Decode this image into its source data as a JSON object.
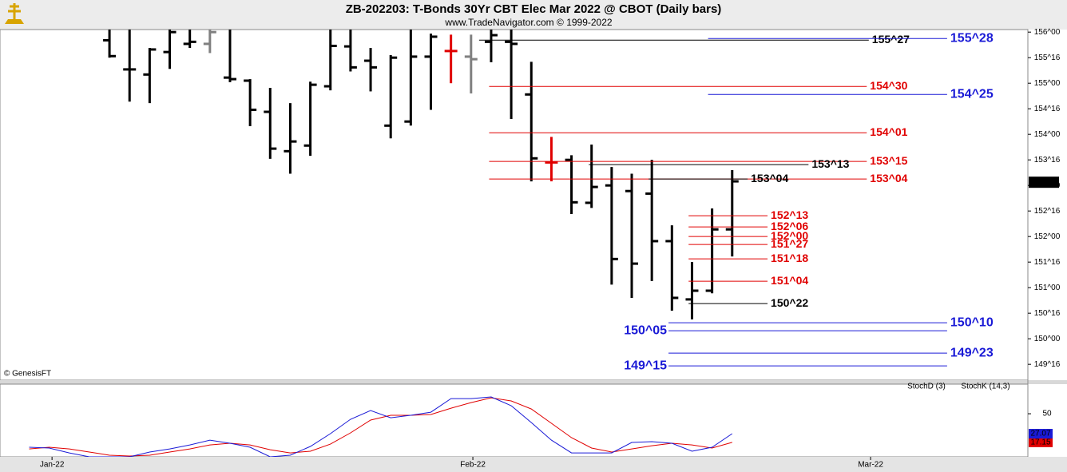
{
  "chart_data": [
    {
      "type": "ohlc",
      "title": "ZB-202203:  T-Bonds 30Yr CBT Elec Mar 2022 @ CBOT  (Daily bars)",
      "subtitle": "www.TradeNavigator.com © 1999-2022",
      "credit": "© GenesisFT",
      "x": [
        0,
        1,
        2,
        3,
        4,
        5,
        6,
        7,
        8,
        9,
        10,
        11,
        12,
        13,
        14,
        15,
        16,
        17,
        18,
        19,
        20,
        21,
        22,
        23,
        24,
        25,
        26,
        27,
        28,
        29,
        30,
        31
      ],
      "open": [
        155.84,
        155.27,
        155.17,
        155.61,
        155.77,
        155.77,
        155.11,
        155.05,
        154.44,
        153.67,
        153.78,
        154.94,
        155.72,
        155.44,
        154.17,
        154.25,
        155.52,
        155.63,
        155.52,
        155.81,
        155.81,
        154.78,
        153.45,
        153.5,
        152.66,
        153.0,
        152.89,
        152.84,
        151.91,
        150.77,
        150.94,
        152.14
      ],
      "high": [
        156.05,
        156.05,
        155.69,
        156.05,
        156.05,
        156.05,
        156.05,
        155.08,
        154.91,
        154.61,
        155.03,
        156.05,
        156.05,
        155.69,
        155.55,
        156.05,
        155.97,
        155.95,
        155.95,
        156.05,
        156.05,
        155.42,
        153.95,
        153.59,
        153.8,
        153.36,
        153.23,
        153.5,
        152.22,
        151.5,
        152.55,
        153.3
      ],
      "low": [
        155.5,
        154.64,
        154.61,
        155.28,
        155.69,
        155.59,
        155.02,
        154.16,
        153.52,
        153.23,
        153.58,
        154.86,
        155.23,
        154.84,
        153.92,
        154.17,
        154.48,
        155.0,
        154.8,
        155.41,
        154.3,
        153.08,
        153.08,
        152.44,
        152.56,
        151.06,
        150.8,
        151.13,
        150.55,
        150.38,
        150.89,
        151.61
      ],
      "close": [
        155.53,
        155.27,
        155.66,
        156.0,
        155.81,
        156.0,
        155.08,
        154.48,
        153.72,
        153.86,
        154.97,
        155.73,
        155.31,
        155.31,
        155.5,
        155.52,
        155.91,
        155.63,
        155.47,
        155.94,
        155.77,
        153.53,
        153.45,
        152.67,
        152.97,
        151.56,
        151.47,
        151.91,
        150.8,
        150.94,
        152.14,
        153.08
      ],
      "bar_colors": [
        "#000000",
        "#000000",
        "#000000",
        "#000000",
        "#000000",
        "#808080",
        "#000000",
        "#000000",
        "#000000",
        "#000000",
        "#000000",
        "#000000",
        "#000000",
        "#000000",
        "#000000",
        "#000000",
        "#000000",
        "#e00000",
        "#808080",
        "#000000",
        "#000000",
        "#000000",
        "#e00000",
        "#000000",
        "#000000",
        "#000000",
        "#000000",
        "#000000",
        "#000000",
        "#000000",
        "#000000",
        "#000000"
      ],
      "xlim": [
        -5.45,
        45.72
      ],
      "ylim": [
        149.19,
        156.05
      ],
      "yticks": [
        {
          "value": 156,
          "label": "156^00"
        },
        {
          "value": 155.5,
          "label": "155^16"
        },
        {
          "value": 155,
          "label": "155^00"
        },
        {
          "value": 154.5,
          "label": "154^16"
        },
        {
          "value": 154,
          "label": "154^00"
        },
        {
          "value": 153.5,
          "label": "153^16"
        },
        {
          "value": 153,
          "label": "153^00"
        },
        {
          "value": 152.5,
          "label": "152^16"
        },
        {
          "value": 152,
          "label": "152^00"
        },
        {
          "value": 151.5,
          "label": "151^16"
        },
        {
          "value": 151,
          "label": "151^00"
        },
        {
          "value": 150.5,
          "label": "150^16"
        },
        {
          "value": 150,
          "label": "150^00"
        },
        {
          "value": 149.5,
          "label": "149^16"
        }
      ],
      "last_price": {
        "value": 153.0625,
        "label": "153^02"
      },
      "levels": [
        {
          "label": "155^27",
          "value": 155.84375,
          "color": "#000000",
          "x": [
            18.4,
            37.8
          ]
        },
        {
          "label": "155^28",
          "value": 155.875,
          "color": "#1a1ad6",
          "x": [
            29.8,
            41.7
          ]
        },
        {
          "label": "154^30",
          "value": 154.9375,
          "color": "#e00000",
          "x": [
            18.9,
            37.7
          ]
        },
        {
          "label": "154^25",
          "value": 154.78125,
          "color": "#1a1ad6",
          "x": [
            29.8,
            41.7
          ]
        },
        {
          "label": "154^01",
          "value": 154.03125,
          "color": "#e00000",
          "x": [
            18.9,
            37.7
          ]
        },
        {
          "label": "153^15",
          "value": 153.46875,
          "color": "#e00000",
          "x": [
            18.9,
            37.7
          ]
        },
        {
          "label": "153^13",
          "value": 153.40625,
          "color": "#000000",
          "x": [
            23.86,
            34.8
          ]
        },
        {
          "label": "153^04",
          "value": 153.125,
          "color": "#e00000",
          "x": [
            18.9,
            37.7
          ]
        },
        {
          "label": "153^04",
          "value": 153.125,
          "color": "#000000",
          "x": [
            26.84,
            31.77
          ]
        },
        {
          "label": "152^13",
          "value": 152.40625,
          "color": "#e00000",
          "x": [
            28.83,
            32.76
          ]
        },
        {
          "label": "152^06",
          "value": 152.1875,
          "color": "#e00000",
          "x": [
            28.83,
            32.76
          ]
        },
        {
          "label": "152^00",
          "value": 152,
          "color": "#e00000",
          "x": [
            28.83,
            32.76
          ]
        },
        {
          "label": "151^27",
          "value": 151.84375,
          "color": "#e00000",
          "x": [
            28.83,
            32.76
          ]
        },
        {
          "label": "151^18",
          "value": 151.5625,
          "color": "#e00000",
          "x": [
            28.83,
            32.76
          ]
        },
        {
          "label": "151^04",
          "value": 151.125,
          "color": "#e00000",
          "x": [
            28.83,
            32.76
          ]
        },
        {
          "label": "150^22",
          "value": 150.6875,
          "color": "#000000",
          "x": [
            28.83,
            32.76
          ]
        },
        {
          "label": "150^10",
          "value": 150.3125,
          "color": "#1a1ad6",
          "x": [
            27.83,
            41.7
          ]
        },
        {
          "label": "150^05",
          "value": 150.15625,
          "color": "#1a1ad6",
          "x": [
            27.83,
            41.7
          ],
          "label_side": "left"
        },
        {
          "label": "149^23",
          "value": 149.71875,
          "color": "#1a1ad6",
          "x": [
            27.83,
            41.7
          ]
        },
        {
          "label": "149^15",
          "value": 149.46875,
          "color": "#1a1ad6",
          "x": [
            27.83,
            41.7
          ],
          "label_side": "left"
        }
      ]
    },
    {
      "type": "line",
      "x": [
        -4,
        -3,
        -2,
        -1,
        0,
        1,
        2,
        3,
        4,
        5,
        6,
        7,
        8,
        9,
        10,
        11,
        12,
        13,
        14,
        15,
        16,
        17,
        18,
        19,
        20,
        21,
        22,
        23,
        24,
        25,
        26,
        27,
        28,
        29,
        30,
        31
      ],
      "series": [
        {
          "name": "StochD (3)",
          "color": "#e00000",
          "values": [
            9.6,
            11.5,
            9.6,
            6.0,
            2.3,
            1.4,
            2.3,
            6.0,
            9.6,
            14.2,
            16.1,
            14.2,
            8.7,
            5.0,
            6.9,
            15.1,
            28.0,
            42.7,
            48.2,
            48.2,
            49.1,
            56.4,
            62.8,
            68.3,
            64.7,
            55.5,
            39.0,
            22.5,
            10.6,
            6.0,
            9.6,
            13.3,
            16.1,
            14.2,
            10.6,
            17.15
          ]
        },
        {
          "name": "StochK (14,3)",
          "color": "#1a1ad6",
          "values": [
            11.5,
            10.6,
            5.0,
            0.5,
            0.5,
            0.5,
            6.0,
            9.6,
            14.2,
            19.7,
            16.1,
            11.5,
            0.5,
            2.3,
            12.4,
            27.1,
            43.6,
            53.7,
            45.4,
            48.2,
            51.8,
            67.4,
            67.4,
            69.3,
            59.2,
            39.9,
            19.7,
            5.0,
            5.0,
            5.0,
            17.0,
            17.9,
            16.1,
            6.9,
            11.5,
            27.07
          ]
        }
      ],
      "xlim": [
        -5.45,
        45.72
      ],
      "xticks": [
        {
          "value": -2.86,
          "label": "Jan-22"
        },
        {
          "value": 18.09,
          "label": "Feb-22"
        },
        {
          "value": 37.89,
          "label": "Mar-22"
        }
      ],
      "ylim": [
        0.5,
        84
      ],
      "yticks": [
        50
      ]
    }
  ]
}
